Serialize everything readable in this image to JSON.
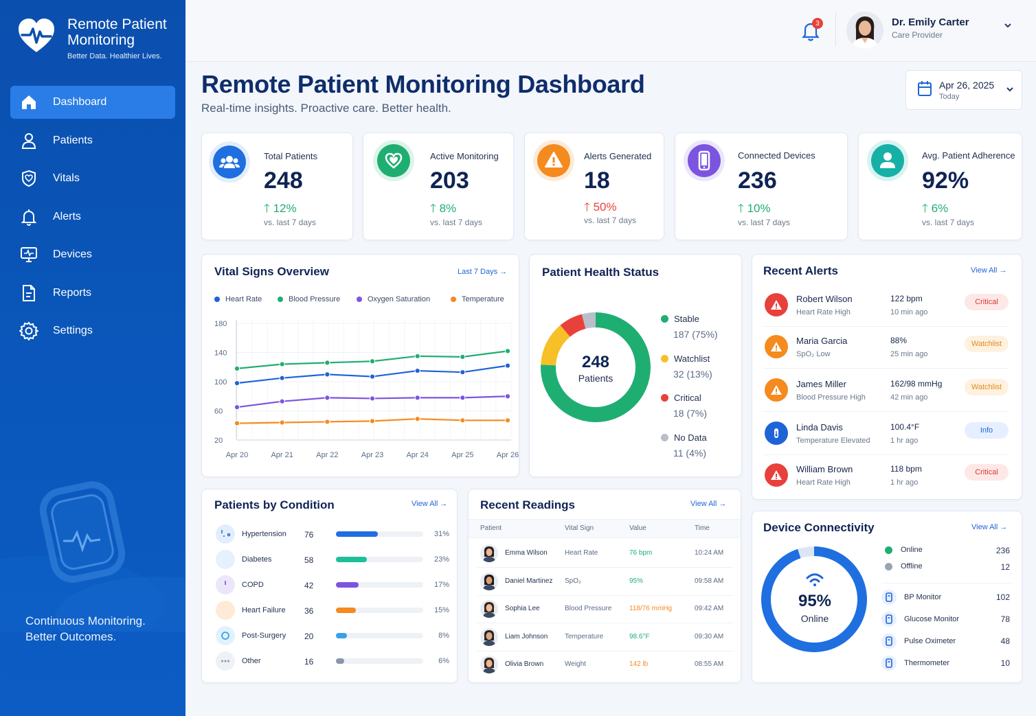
{
  "brand": {
    "title_line1": "Remote Patient",
    "title_line2": "Monitoring",
    "tagline": "Better Data. Healthier Lives."
  },
  "nav": [
    {
      "label": "Dashboard",
      "icon": "home-icon",
      "active": true
    },
    {
      "label": "Patients",
      "icon": "user-icon"
    },
    {
      "label": "Vitals",
      "icon": "shield-heart-icon"
    },
    {
      "label": "Alerts",
      "icon": "bell-icon"
    },
    {
      "label": "Devices",
      "icon": "monitor-icon"
    },
    {
      "label": "Reports",
      "icon": "report-icon"
    },
    {
      "label": "Settings",
      "icon": "gear-icon"
    }
  ],
  "sidebar_footer": {
    "line1": "Continuous Monitoring.",
    "line2": "Better Outcomes."
  },
  "topbar": {
    "notifications": "3",
    "user_name": "Dr. Emily Carter",
    "user_role": "Care Provider"
  },
  "header": {
    "title": "Remote Patient Monitoring Dashboard",
    "subtitle": "Real-time insights. Proactive care. Better health.",
    "date": "Apr 26, 2025",
    "date_sub": "Today"
  },
  "kpis": [
    {
      "label": "Total Patients",
      "value": "248",
      "change": "12%",
      "period": "vs. last 7 days",
      "color": "#1f6fe0",
      "icon": "people-icon",
      "trend": "up-good"
    },
    {
      "label": "Active Monitoring",
      "value": "203",
      "change": "8%",
      "period": "vs. last 7 days",
      "color": "#1fae72",
      "icon": "heart-icon",
      "trend": "up-good"
    },
    {
      "label": "Alerts Generated",
      "value": "18",
      "change": "50%",
      "period": "vs. last 7 days",
      "color": "#f58a1f",
      "icon": "warning-icon",
      "trend": "up-bad"
    },
    {
      "label": "Connected Devices",
      "value": "236",
      "change": "10%",
      "period": "vs. last 7 days",
      "color": "#7b55e0",
      "icon": "phone-icon",
      "trend": "up-good"
    },
    {
      "label": "Avg. Patient Adherence",
      "value": "92%",
      "change": "6%",
      "period": "vs. last 7 days",
      "color": "#16b0a6",
      "icon": "person-icon",
      "trend": "up-good"
    }
  ],
  "vitals": {
    "title": "Vital Signs Overview",
    "range_link": "Last 7 Days"
  },
  "chart_data": {
    "type": "line",
    "x": [
      "Apr 20",
      "Apr 21",
      "Apr 22",
      "Apr 23",
      "Apr 24",
      "Apr 25",
      "Apr 26"
    ],
    "yticks": [
      "180",
      "140",
      "100",
      "60",
      "20"
    ],
    "ylim": [
      20,
      180
    ],
    "grid": true,
    "legend": "top",
    "series": [
      {
        "name": "Heart Rate",
        "color": "#1f63d6",
        "values": [
          98,
          105,
          110,
          107,
          115,
          113,
          122
        ]
      },
      {
        "name": "Blood Pressure",
        "color": "#1fae72",
        "values": [
          118,
          124,
          126,
          128,
          135,
          134,
          142
        ]
      },
      {
        "name": "Oxygen Saturation",
        "color": "#7b55e0",
        "values": [
          65,
          73,
          78,
          77,
          78,
          78,
          80
        ]
      },
      {
        "name": "Temperature",
        "color": "#f58a1f",
        "values": [
          43,
          44,
          45,
          46,
          49,
          47,
          47
        ]
      }
    ]
  },
  "health_status": {
    "title": "Patient Health Status",
    "total": "248",
    "total_label": "Patients",
    "items": [
      {
        "label": "Stable",
        "value": "187 (75%)",
        "color": "#1fae72",
        "pct": 75
      },
      {
        "label": "Watchlist",
        "value": "32  (13%)",
        "color": "#f6c026",
        "pct": 13
      },
      {
        "label": "Critical",
        "value": "18 (7%)",
        "color": "#e8413b",
        "pct": 7
      },
      {
        "label": "No Data",
        "value": "11 (4%)",
        "color": "#b8bfca",
        "pct": 4
      }
    ]
  },
  "recent_alerts": {
    "title": "Recent Alerts",
    "view_all": "View All",
    "items": [
      {
        "name": "Robert Wilson",
        "sub": "Heart Rate High",
        "value": "122 bpm",
        "time": "10 min ago",
        "badge": "Critical",
        "color": "#e8413b",
        "badge_bg": "#fde8e7",
        "badge_fg": "#d8362f",
        "icon": "warning-icon"
      },
      {
        "name": "Maria Garcia",
        "sub": "SpO₂ Low",
        "value": "88%",
        "time": "25 min ago",
        "badge": "Watchlist",
        "color": "#f58a1f",
        "badge_bg": "#fef1df",
        "badge_fg": "#e08a1b",
        "icon": "warning-icon"
      },
      {
        "name": "James Miller",
        "sub": "Blood Pressure High",
        "value": "162/98 mmHg",
        "time": "42 min ago",
        "badge": "Watchlist",
        "color": "#f58a1f",
        "badge_bg": "#fef1df",
        "badge_fg": "#e08a1b",
        "icon": "warning-icon"
      },
      {
        "name": "Linda Davis",
        "sub": "Temperature Elevated",
        "value": "100.4°F",
        "time": "1 hr ago",
        "badge": "Info",
        "color": "#1f63d6",
        "badge_bg": "#e6efff",
        "badge_fg": "#1f63d6",
        "icon": "thermometer-icon"
      },
      {
        "name": "William Brown",
        "sub": "Heart Rate High",
        "value": "118 bpm",
        "time": "1 hr ago",
        "badge": "Critical",
        "color": "#e8413b",
        "badge_bg": "#fde8e7",
        "badge_fg": "#d8362f",
        "icon": "warning-icon"
      }
    ]
  },
  "conditions": {
    "title": "Patients by Condition",
    "view_all": "View All",
    "items": [
      {
        "name": "Hypertension",
        "count": "76",
        "pct": "31%",
        "fraction": 0.31,
        "color": "#1f6fe0",
        "icon": "stethoscope-icon"
      },
      {
        "name": "Diabetes",
        "count": "58",
        "pct": "23%",
        "fraction": 0.23,
        "color": "#1fbf9a",
        "icon": "glucose-icon"
      },
      {
        "name": "COPD",
        "count": "42",
        "pct": "17%",
        "fraction": 0.17,
        "color": "#7b55e0",
        "icon": "lungs-icon"
      },
      {
        "name": "Heart Failure",
        "count": "36",
        "pct": "15%",
        "fraction": 0.15,
        "color": "#f58a1f",
        "icon": "heart-icon"
      },
      {
        "name": "Post-Surgery",
        "count": "20",
        "pct": "8%",
        "fraction": 0.08,
        "color": "#3aa0e8",
        "icon": "bandage-icon"
      },
      {
        "name": "Other",
        "count": "16",
        "pct": "6%",
        "fraction": 0.06,
        "color": "#8a96aa",
        "icon": "more-icon"
      }
    ]
  },
  "readings": {
    "title": "Recent Readings",
    "view_all": "View All",
    "headers": [
      "Patient",
      "Vital Sign",
      "Value",
      "Time"
    ],
    "rows": [
      {
        "patient": "Emma Wilson",
        "vital": "Heart Rate",
        "value": "76 bpm",
        "time": "10:24 AM",
        "color": "#1fae72"
      },
      {
        "patient": "Daniel Martinez",
        "vital": "SpO₂",
        "value": "95%",
        "time": "09:58 AM",
        "color": "#1fae72"
      },
      {
        "patient": "Sophia Lee",
        "vital": "Blood Pressure",
        "value": "118/76 mmHg",
        "time": "09:42 AM",
        "color": "#f58a1f"
      },
      {
        "patient": "Liam Johnson",
        "vital": "Temperature",
        "value": "98.6°F",
        "time": "09:30 AM",
        "color": "#1fae72"
      },
      {
        "patient": "Olivia Brown",
        "vital": "Weight",
        "value": "142 lb",
        "time": "08:55 AM",
        "color": "#f58a1f"
      }
    ]
  },
  "connectivity": {
    "title": "Device Connectivity",
    "view_all": "View All",
    "percent": "95%",
    "percent_label": "Online",
    "fraction": 0.95,
    "status": [
      {
        "label": "Online",
        "value": "236",
        "color": "#1fae72"
      },
      {
        "label": "Offline",
        "value": "12",
        "color": "#9aa3b2"
      }
    ],
    "devices": [
      {
        "name": "BP Monitor",
        "value": "102",
        "icon": "bp-monitor-icon"
      },
      {
        "name": "Glucose Monitor",
        "value": "78",
        "icon": "glucose-monitor-icon"
      },
      {
        "name": "Pulse Oximeter",
        "value": "48",
        "icon": "oximeter-icon"
      },
      {
        "name": "Thermometer",
        "value": "10",
        "icon": "thermometer-icon"
      }
    ]
  }
}
